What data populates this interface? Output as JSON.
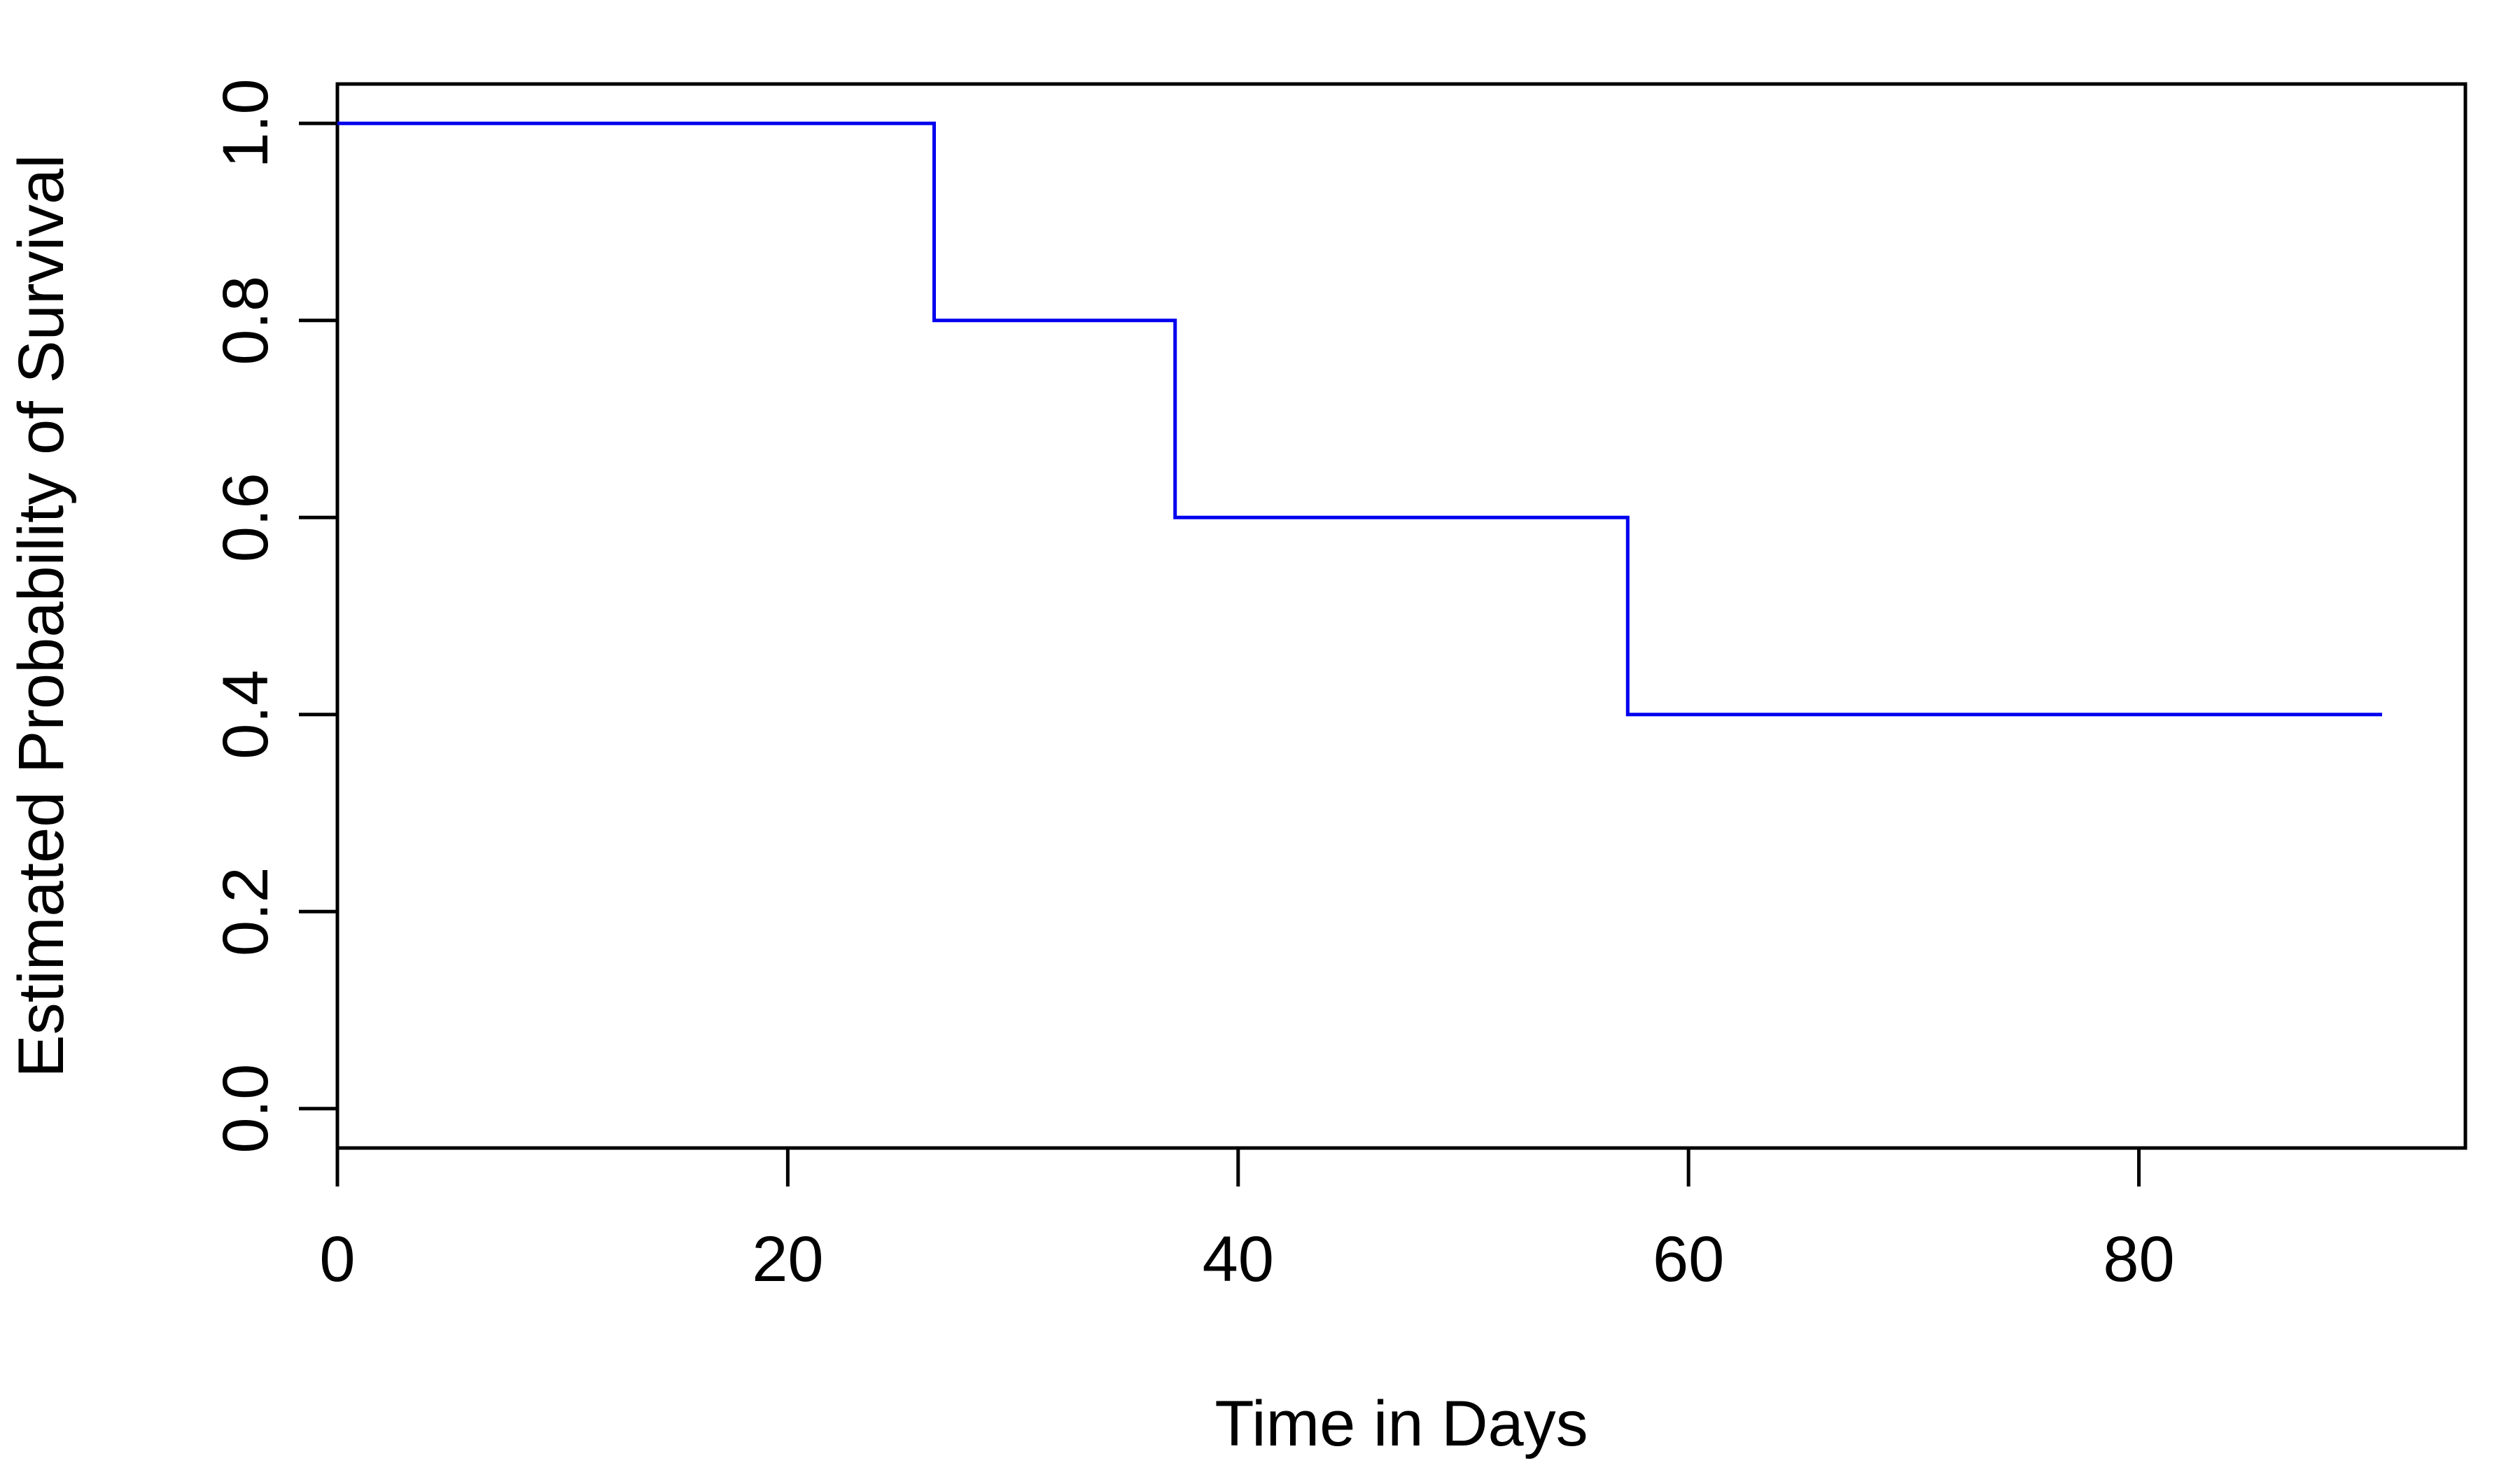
{
  "chart_data": {
    "type": "line",
    "step": true,
    "title": "",
    "xlabel": "Time in Days",
    "ylabel": "Estimated Probability of Survival",
    "xlim": [
      0,
      94.5
    ],
    "ylim": [
      -0.04,
      1.04
    ],
    "x_ticks": [
      0,
      20,
      40,
      60,
      80
    ],
    "x_tick_labels": [
      "0",
      "20",
      "40",
      "60",
      "80"
    ],
    "y_ticks": [
      0.0,
      0.2,
      0.4,
      0.6,
      0.8,
      1.0
    ],
    "y_tick_labels": [
      "0.0",
      "0.2",
      "0.4",
      "0.6",
      "0.8",
      "1.0"
    ],
    "grid": false,
    "series": [
      {
        "color": "#0000ee",
        "x": [
          0,
          26.5,
          37.2,
          57.3,
          90.8
        ],
        "y": [
          1.0,
          0.8,
          0.6,
          0.4,
          0.4
        ]
      }
    ]
  }
}
